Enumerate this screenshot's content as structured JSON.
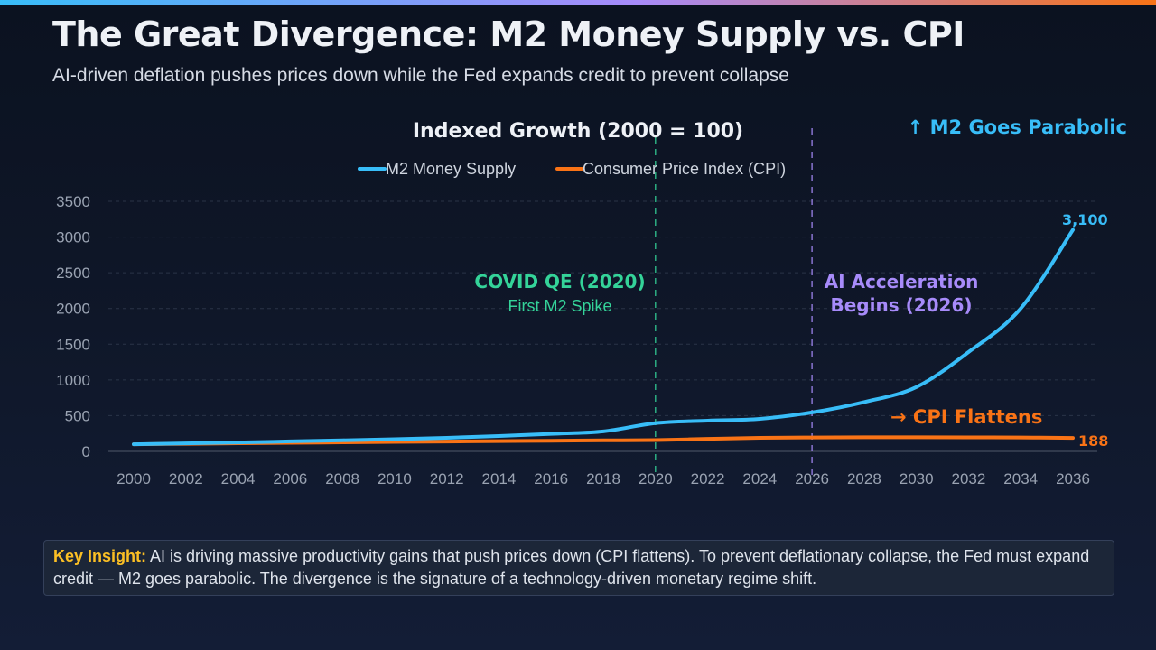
{
  "header": {
    "title": "The Great Divergence: M2 Money Supply vs. CPI",
    "subtitle": "AI-driven deflation pushes prices down while the Fed expands credit to prevent collapse"
  },
  "colors": {
    "m2": "#38bdf8",
    "cpi": "#f97316",
    "covid": "#34d399",
    "ai": "#a78bfa",
    "insight_label": "#fbbf24"
  },
  "chart_data": {
    "type": "line",
    "title": "Indexed Growth (2000 = 100)",
    "x": [
      2000,
      2002,
      2004,
      2006,
      2008,
      2010,
      2012,
      2014,
      2016,
      2018,
      2020,
      2022,
      2024,
      2026,
      2028,
      2030,
      2032,
      2034,
      2036
    ],
    "x_ticks": [
      "2000",
      "2002",
      "2004",
      "2006",
      "2008",
      "2010",
      "2012",
      "2014",
      "2016",
      "2018",
      "2020",
      "2022",
      "2024",
      "2026",
      "2028",
      "2030",
      "2032",
      "2034",
      "2036"
    ],
    "y_ticks": [
      "0",
      "500",
      "1000",
      "1500",
      "2000",
      "2500",
      "3000",
      "3500"
    ],
    "ylim": [
      0,
      3500
    ],
    "xlim": [
      2000,
      2036
    ],
    "grid": true,
    "legend_placement": "top-center",
    "series": [
      {
        "name": "M2 Money Supply",
        "values": [
          100,
          112,
          125,
          140,
          155,
          170,
          190,
          215,
          245,
          280,
          395,
          430,
          455,
          545,
          690,
          900,
          1390,
          2000,
          3100
        ]
      },
      {
        "name": "Consumer Price Index (CPI)",
        "values": [
          100,
          106,
          113,
          120,
          126,
          132,
          138,
          144,
          149,
          154,
          158,
          175,
          190,
          195,
          197,
          197,
          196,
          194,
          188
        ]
      }
    ],
    "end_labels": [
      "3,100",
      "188"
    ],
    "vlines": [
      {
        "x": 2020,
        "label": "COVID QE (2020)",
        "sublabel": "First M2 Spike"
      },
      {
        "x": 2026,
        "label": "AI Acceleration",
        "label2": "Begins (2026)"
      }
    ],
    "annotations": [
      "↑ M2 Goes Parabolic",
      "→ CPI Flattens"
    ]
  },
  "insight": {
    "label": "Key Insight:",
    "text": " AI is driving massive productivity gains that push prices down (CPI flattens). To prevent deflationary collapse, the Fed must expand credit — M2 goes parabolic. The divergence is the signature of a technology-driven monetary regime shift."
  }
}
